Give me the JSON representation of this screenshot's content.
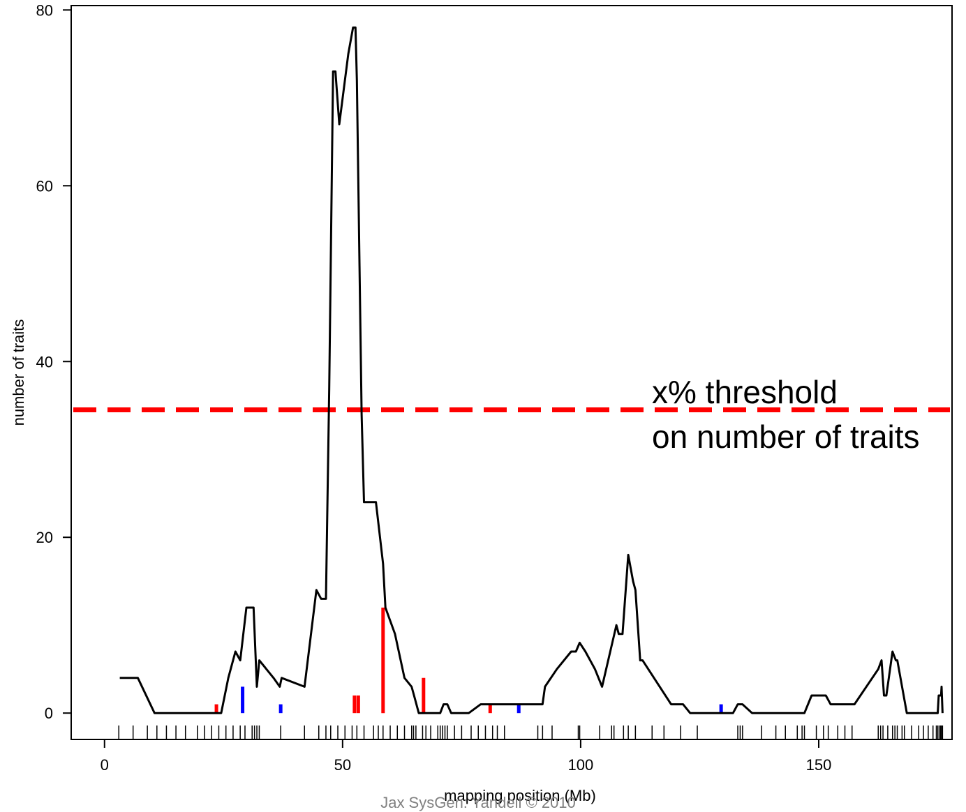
{
  "chart_data": {
    "type": "line",
    "xlabel": "mapping position (Mb)",
    "ylabel": "number of traits",
    "xlim": [
      -7,
      178
    ],
    "ylim": [
      -3,
      80.5
    ],
    "x_ticks": [
      0,
      50,
      100,
      150
    ],
    "y_ticks": [
      0,
      20,
      40,
      60,
      80
    ],
    "series": [
      {
        "color": "#000000",
        "points": [
          [
            3.2,
            4
          ],
          [
            7,
            4
          ],
          [
            10.5,
            0
          ],
          [
            23.5,
            0
          ],
          [
            24.5,
            0
          ],
          [
            26,
            4
          ],
          [
            27.5,
            7
          ],
          [
            28.5,
            6
          ],
          [
            29.8,
            12
          ],
          [
            31.3,
            12
          ],
          [
            32,
            3
          ],
          [
            32.5,
            6
          ],
          [
            35.5,
            4
          ],
          [
            36.8,
            3
          ],
          [
            37.2,
            4
          ],
          [
            42,
            3
          ],
          [
            44.5,
            14
          ],
          [
            45.5,
            13
          ],
          [
            46.5,
            13
          ],
          [
            47.2,
            37
          ],
          [
            48,
            73
          ],
          [
            48.5,
            73
          ],
          [
            49.3,
            67
          ],
          [
            51.2,
            75
          ],
          [
            52.2,
            78
          ],
          [
            52.7,
            78
          ],
          [
            53,
            72
          ],
          [
            54,
            34
          ],
          [
            54.5,
            24
          ],
          [
            56,
            24
          ],
          [
            57,
            24
          ],
          [
            58.5,
            17
          ],
          [
            59,
            12
          ],
          [
            61,
            9
          ],
          [
            63,
            4
          ],
          [
            64.5,
            3
          ],
          [
            65,
            2
          ],
          [
            66,
            0
          ],
          [
            70.5,
            0
          ],
          [
            71.2,
            1
          ],
          [
            72,
            1
          ],
          [
            72.8,
            0
          ],
          [
            76.5,
            0
          ],
          [
            79,
            1
          ],
          [
            92,
            1
          ],
          [
            92.5,
            3
          ],
          [
            95,
            5
          ],
          [
            98,
            7
          ],
          [
            99,
            7
          ],
          [
            99.8,
            8
          ],
          [
            101,
            7
          ],
          [
            103,
            5
          ],
          [
            104.5,
            3
          ],
          [
            107.5,
            10
          ],
          [
            108,
            9
          ],
          [
            108.8,
            9
          ],
          [
            110,
            18
          ],
          [
            111,
            15
          ],
          [
            111.5,
            14
          ],
          [
            112.5,
            6
          ],
          [
            113,
            6
          ],
          [
            119,
            1
          ],
          [
            121.5,
            1
          ],
          [
            123,
            0
          ],
          [
            132,
            0
          ],
          [
            133,
            1
          ],
          [
            134,
            1
          ],
          [
            136,
            0
          ],
          [
            147,
            0
          ],
          [
            148.5,
            2
          ],
          [
            151.5,
            2
          ],
          [
            152.5,
            1
          ],
          [
            157.5,
            1
          ],
          [
            162.5,
            5
          ],
          [
            163.2,
            6
          ],
          [
            163.7,
            2
          ],
          [
            164.2,
            2
          ],
          [
            165.5,
            7
          ],
          [
            166.2,
            6
          ],
          [
            166.5,
            6
          ],
          [
            168.5,
            0
          ],
          [
            175,
            0
          ],
          [
            175.2,
            2
          ],
          [
            175.7,
            2
          ],
          [
            175.8,
            3
          ],
          [
            176,
            0
          ]
        ]
      }
    ],
    "qtl_markers": [
      {
        "x": 23.5,
        "height": 1,
        "color": "#ff0000"
      },
      {
        "x": 29,
        "height": 3,
        "color": "#0000ff"
      },
      {
        "x": 37,
        "height": 1,
        "color": "#0000ff"
      },
      {
        "x": 52.5,
        "height": 2,
        "color": "#ff0000"
      },
      {
        "x": 53.3,
        "height": 2,
        "color": "#ff0000"
      },
      {
        "x": 58.5,
        "height": 12,
        "color": "#ff0000"
      },
      {
        "x": 67,
        "height": 4,
        "color": "#ff0000"
      },
      {
        "x": 81,
        "height": 1,
        "color": "#ff0000"
      },
      {
        "x": 87,
        "height": 1,
        "color": "#0000ff"
      },
      {
        "x": 129.5,
        "height": 1,
        "color": "#0000ff"
      }
    ],
    "rug": [
      3,
      6,
      9,
      11,
      13,
      15,
      17,
      19.5,
      21,
      22.5,
      24,
      25.5,
      27,
      28.5,
      29.5,
      31,
      31.5,
      32,
      32.5,
      37,
      42,
      45,
      46.5,
      47.5,
      49,
      50.5,
      52,
      53,
      54.5,
      56.5,
      57.5,
      58.5,
      60,
      61.5,
      63,
      64.5,
      64.9,
      65.4,
      66.8,
      67.5,
      68.5,
      70,
      70.5,
      71,
      71.5,
      72,
      73.5,
      75,
      77,
      78.5,
      80,
      81.5,
      82.5,
      84,
      91,
      92,
      94,
      99.5,
      99.8,
      104,
      106.5,
      107,
      109,
      110,
      111.5,
      115,
      117.5,
      121,
      124.5,
      133,
      133.5,
      134,
      138,
      141,
      143,
      145.5,
      146.5,
      147,
      149.5,
      151,
      152,
      154,
      155.5,
      157,
      162.5,
      163,
      163.5,
      164.5,
      165.5,
      166,
      166.5,
      167.5,
      168,
      169.5,
      171,
      172,
      173,
      174,
      174.7,
      175,
      175.3,
      175.6,
      175.8,
      176
    ],
    "threshold": {
      "y": 34.5,
      "color": "#ff0000",
      "style": "dashed"
    },
    "annotation": {
      "line1": "x% threshold",
      "line2": "on number of traits"
    }
  },
  "footer": "Jax SysGen: Yandell © 2010"
}
